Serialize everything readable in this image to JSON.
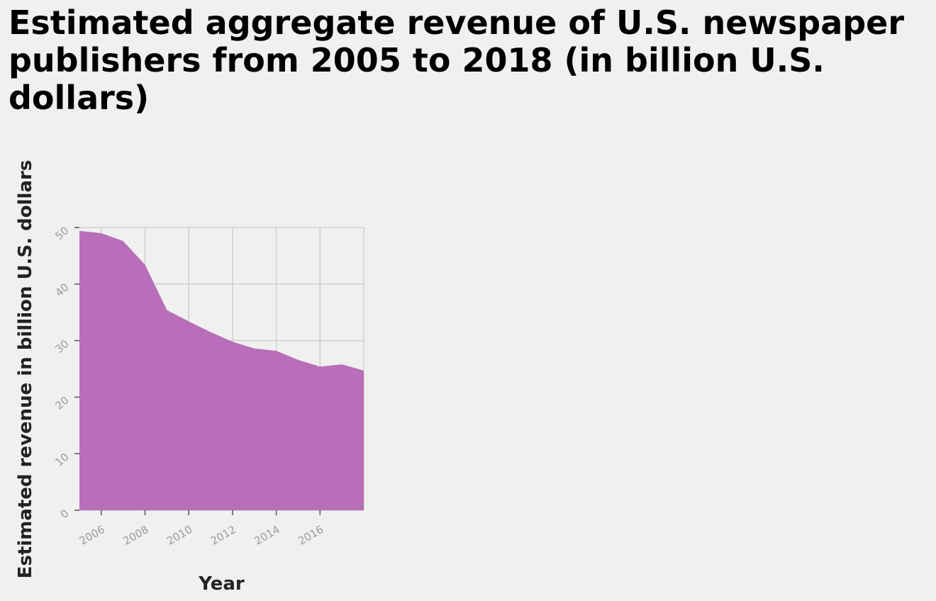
{
  "chart_data": {
    "type": "area",
    "title": "Estimated aggregate revenue of U.S. newspaper publishers from 2005 to 2018 (in billion U.S. dollars)",
    "xlabel": "Year",
    "ylabel": "Estimated revenue in billion U.S. dollars",
    "x": [
      2005,
      2006,
      2007,
      2008,
      2009,
      2010,
      2011,
      2012,
      2013,
      2014,
      2015,
      2016,
      2017,
      2018
    ],
    "values": [
      49.4,
      49.0,
      47.6,
      43.4,
      35.4,
      33.4,
      31.5,
      29.8,
      28.6,
      28.2,
      26.6,
      25.4,
      25.8,
      24.7
    ],
    "xlim": [
      2005,
      2018
    ],
    "ylim": [
      0,
      50
    ],
    "x_ticks": [
      "2006",
      "2008",
      "2010",
      "2012",
      "2014",
      "2016"
    ],
    "y_ticks": [
      "0",
      "10",
      "20",
      "30",
      "40",
      "50"
    ],
    "grid": true,
    "color": "#b86eb8"
  }
}
